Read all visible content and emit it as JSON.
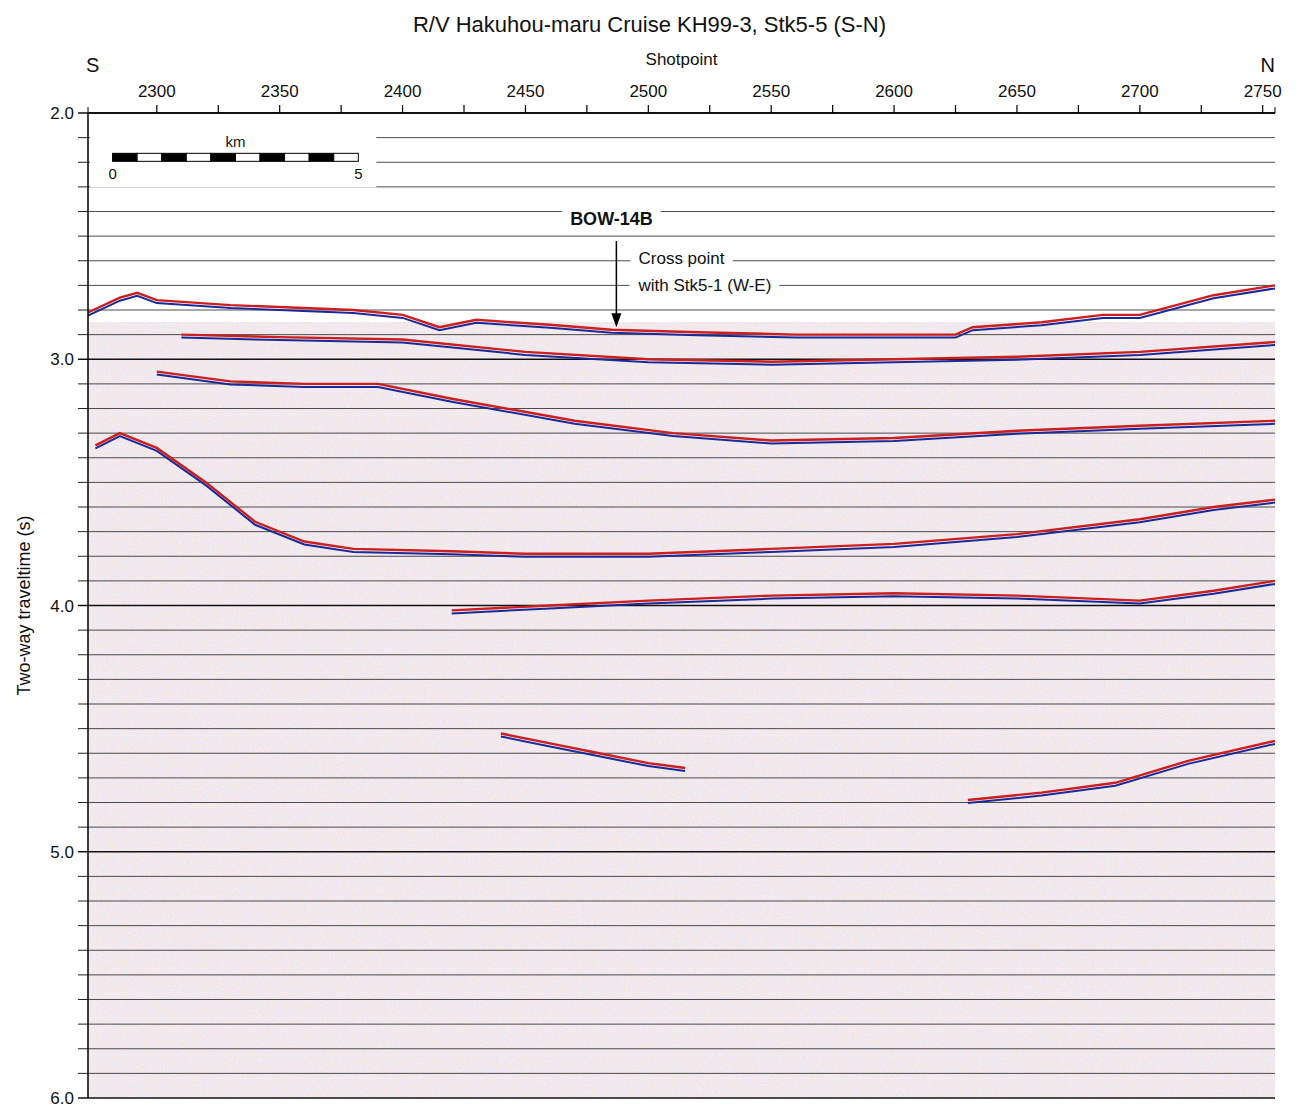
{
  "chart_data": {
    "type": "seismic",
    "title": "R/V Hakuhou-maru Cruise KH99-3, Stk5-5 (S-N)",
    "x_label": "Shotpoint",
    "y_label": "Two-way traveltime (s)",
    "left_end_label": "S",
    "right_end_label": "N",
    "xlim": [
      2272,
      2755
    ],
    "xticks": [
      2300,
      2350,
      2400,
      2450,
      2500,
      2550,
      2600,
      2650,
      2700,
      2750
    ],
    "ylim": [
      2.0,
      6.0
    ],
    "yticks": [
      {
        "value": 2,
        "label": "2.0"
      },
      {
        "value": 3,
        "label": "3.0"
      },
      {
        "value": 4,
        "label": "4.0"
      },
      {
        "value": 5,
        "label": "5.0"
      },
      {
        "value": 6,
        "label": "6.0"
      }
    ],
    "grid": true,
    "scale_bar": {
      "label": "km",
      "ticks": [
        0,
        5
      ],
      "shotpoints_per_km": 20,
      "start": 2282,
      "y": 2.18
    },
    "annotations": [
      {
        "label": "BOW-14B",
        "x": 2485,
        "y": 2.43
      },
      {
        "label": "Cross point",
        "x": 2496,
        "y": 2.59
      },
      {
        "label": "with Stk5-1 (W-E)",
        "x": 2496,
        "y": 2.7
      }
    ],
    "arrow": {
      "x": 2487,
      "y_from": 2.52,
      "y_to": 2.87
    },
    "series": [
      {
        "color": "#cc1f1f",
        "x": [
          2272,
          2285,
          2292,
          2300,
          2330,
          2380,
          2400,
          2415,
          2430,
          2460,
          2485,
          2520,
          2560,
          2600,
          2625,
          2632,
          2660,
          2685,
          2700,
          2730,
          2755
        ],
        "values": [
          2.81,
          2.75,
          2.73,
          2.76,
          2.78,
          2.8,
          2.82,
          2.87,
          2.84,
          2.86,
          2.88,
          2.89,
          2.9,
          2.9,
          2.9,
          2.87,
          2.85,
          2.82,
          2.82,
          2.74,
          2.7
        ]
      },
      {
        "color": "#cc1f1f",
        "x": [
          2310,
          2350,
          2400,
          2450,
          2500,
          2550,
          2600,
          2650,
          2700,
          2755
        ],
        "values": [
          2.9,
          2.91,
          2.92,
          2.97,
          3.0,
          3.01,
          3.0,
          2.99,
          2.97,
          2.93
        ]
      },
      {
        "color": "#cc1f1f",
        "x": [
          2300,
          2330,
          2360,
          2390,
          2420,
          2470,
          2510,
          2550,
          2600,
          2650,
          2700,
          2755
        ],
        "values": [
          3.05,
          3.09,
          3.1,
          3.1,
          3.16,
          3.25,
          3.3,
          3.33,
          3.32,
          3.29,
          3.27,
          3.25
        ]
      },
      {
        "color": "#cc1f1f",
        "x": [
          2275,
          2285,
          2300,
          2320,
          2340,
          2360,
          2380,
          2420,
          2450,
          2500,
          2550,
          2600,
          2650,
          2700,
          2730,
          2755
        ],
        "values": [
          3.35,
          3.3,
          3.36,
          3.5,
          3.66,
          3.74,
          3.77,
          3.78,
          3.79,
          3.79,
          3.77,
          3.75,
          3.71,
          3.65,
          3.6,
          3.57
        ]
      },
      {
        "color": "#cc1f1f",
        "x": [
          2420,
          2460,
          2500,
          2550,
          2600,
          2650,
          2700,
          2730,
          2755
        ],
        "values": [
          4.02,
          4.0,
          3.98,
          3.96,
          3.95,
          3.96,
          3.98,
          3.94,
          3.9
        ]
      },
      {
        "color": "#cc1f1f",
        "x": [
          2440,
          2460,
          2480,
          2500,
          2515
        ],
        "values": [
          4.52,
          4.56,
          4.6,
          4.64,
          4.66
        ]
      },
      {
        "color": "#cc1f1f",
        "x": [
          2630,
          2660,
          2690,
          2720,
          2755
        ],
        "values": [
          4.79,
          4.76,
          4.72,
          4.63,
          4.55
        ]
      }
    ]
  }
}
